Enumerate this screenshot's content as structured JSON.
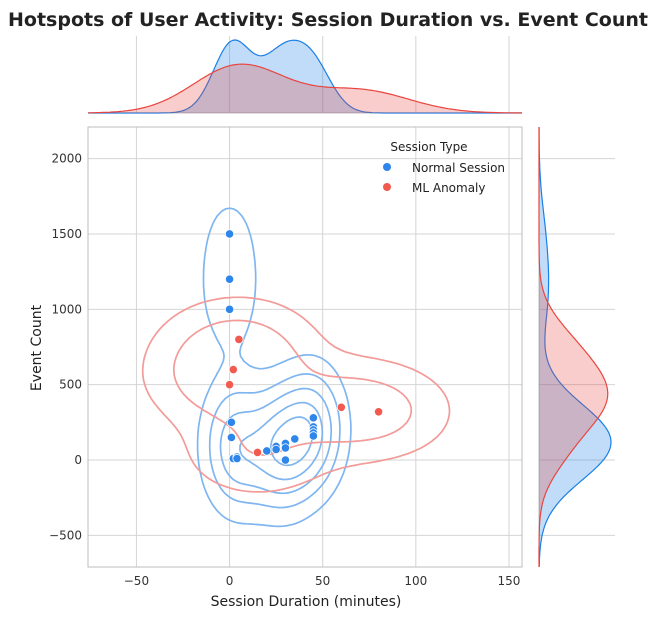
{
  "chart_data": {
    "type": "scatter",
    "title": "Hotspots of User Activity: Session Duration vs. Event Count",
    "xlabel": "Session Duration (minutes)",
    "ylabel": "Event Count",
    "xlim": [
      -76,
      157
    ],
    "ylim": [
      -710,
      2210
    ],
    "xticks": [
      -50,
      0,
      50,
      100,
      150
    ],
    "yticks": [
      -500,
      0,
      500,
      1000,
      1500,
      2000
    ],
    "grid": true,
    "legend": {
      "title": "Session Type",
      "placement": "top-right"
    },
    "series": [
      {
        "name": "Normal Session",
        "color": "#2e86ea",
        "contour_color": "#7fb6f0",
        "marginal_color": "#1a7fe6",
        "points": [
          [
            0,
            1500
          ],
          [
            0,
            1200
          ],
          [
            0,
            1000
          ],
          [
            1,
            250
          ],
          [
            1,
            150
          ],
          [
            2,
            10
          ],
          [
            4,
            20
          ],
          [
            4,
            10
          ],
          [
            20,
            60
          ],
          [
            25,
            90
          ],
          [
            25,
            70
          ],
          [
            30,
            110
          ],
          [
            30,
            80
          ],
          [
            30,
            0
          ],
          [
            35,
            140
          ],
          [
            45,
            280
          ],
          [
            45,
            220
          ],
          [
            45,
            200
          ],
          [
            45,
            180
          ],
          [
            45,
            160
          ]
        ]
      },
      {
        "name": "ML Anomaly",
        "color": "#f05a4f",
        "contour_color": "#f29b98",
        "marginal_color": "#e8453e",
        "points": [
          [
            5,
            800
          ],
          [
            2,
            600
          ],
          [
            0,
            500
          ],
          [
            15,
            50
          ],
          [
            60,
            350
          ],
          [
            80,
            320
          ]
        ]
      }
    ]
  }
}
